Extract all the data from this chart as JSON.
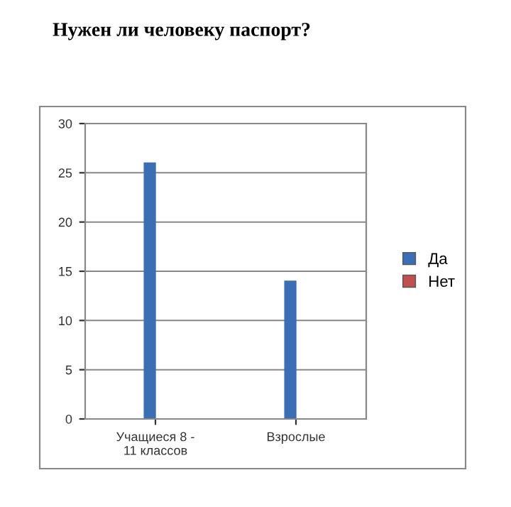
{
  "chart_data": {
    "type": "bar",
    "title": "Нужен ли человеку паспорт?",
    "categories": [
      "Учащиеся 8 -\n11 классов",
      "Взрослые"
    ],
    "series": [
      {
        "name": "Да",
        "color": "#3c6eb4",
        "values": [
          26,
          14
        ]
      },
      {
        "name": "Нет",
        "color": "#c0504d",
        "values": [
          0,
          0
        ]
      }
    ],
    "ylim": [
      0,
      30
    ],
    "yticks": [
      0,
      5,
      10,
      15,
      20,
      25,
      30
    ],
    "grid": "y",
    "legend": "right"
  }
}
